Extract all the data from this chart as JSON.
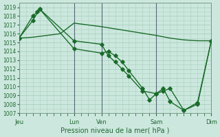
{
  "background_color": "#cce8de",
  "grid_color": "#aacfbf",
  "line_color": "#1a6b2a",
  "marker_color": "#1a6b2a",
  "xlabel": "Pression niveau de la mer( hPa )",
  "ylim": [
    1007,
    1019.5
  ],
  "yticks": [
    1007,
    1008,
    1009,
    1010,
    1011,
    1012,
    1013,
    1014,
    1015,
    1016,
    1017,
    1018,
    1019
  ],
  "xtick_labels": [
    "Jeu",
    "Lun",
    "Ven",
    "Sam",
    "Dim"
  ],
  "xtick_positions": [
    0,
    24,
    36,
    60,
    84
  ],
  "xlim": [
    0,
    84
  ],
  "vlines_x": [
    0,
    24,
    36,
    60,
    84
  ],
  "series_smooth_x": [
    0,
    6,
    12,
    18,
    24,
    36,
    48,
    60,
    66,
    72,
    78,
    84
  ],
  "series_smooth_y": [
    1015.5,
    1015.6,
    1015.8,
    1016.0,
    1017.2,
    1016.8,
    1016.3,
    1015.8,
    1015.5,
    1015.3,
    1015.2,
    1015.2
  ],
  "series1_x": [
    0,
    6,
    8,
    9,
    24,
    36,
    39,
    42,
    45,
    48,
    54,
    60,
    63,
    66,
    72,
    78,
    84
  ],
  "series1_y": [
    1015.5,
    1018.0,
    1018.5,
    1018.8,
    1015.2,
    1014.8,
    1013.5,
    1012.8,
    1012.0,
    1011.2,
    1009.5,
    1009.2,
    1009.5,
    1009.8,
    1007.3,
    1008.2,
    1015.2
  ],
  "series2_x": [
    0,
    6,
    9,
    24,
    36,
    39,
    42,
    45,
    48,
    54,
    57,
    60,
    63,
    66,
    72,
    78,
    84
  ],
  "series2_y": [
    1015.5,
    1017.5,
    1018.8,
    1014.3,
    1013.8,
    1014.0,
    1013.5,
    1012.8,
    1011.8,
    1009.8,
    1008.5,
    1009.2,
    1009.8,
    1008.3,
    1007.3,
    1008.0,
    1015.2
  ],
  "marker_size": 2.8,
  "linewidth": 1.0
}
